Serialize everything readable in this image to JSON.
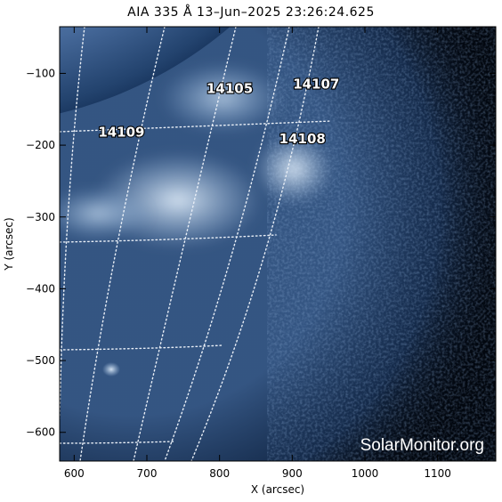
{
  "title": "AIA 335 Å 13–Jun–2025 23:26:24.625",
  "axes": {
    "x_label": "X (arcsec)",
    "y_label": "Y (arcsec)",
    "x_range": [
      580,
      1180
    ],
    "y_range": [
      -640,
      -35
    ],
    "x_ticks": [
      600,
      700,
      800,
      900,
      1000,
      1100
    ],
    "y_ticks": [
      -100,
      -200,
      -300,
      -400,
      -500,
      -600
    ]
  },
  "regions": [
    {
      "id": "14109",
      "x": 665,
      "y": -182
    },
    {
      "id": "14105",
      "x": 814,
      "y": -121
    },
    {
      "id": "14107",
      "x": 933,
      "y": -115
    },
    {
      "id": "14108",
      "x": 914,
      "y": -191
    }
  ],
  "watermark": "SolarMonitor.org",
  "colors": {
    "background": "#ffffff",
    "sky": "#02070f",
    "disk_dim": "#2a4e7e",
    "disk_bright": "#b7cfe8",
    "grid": "#e8eef6"
  }
}
